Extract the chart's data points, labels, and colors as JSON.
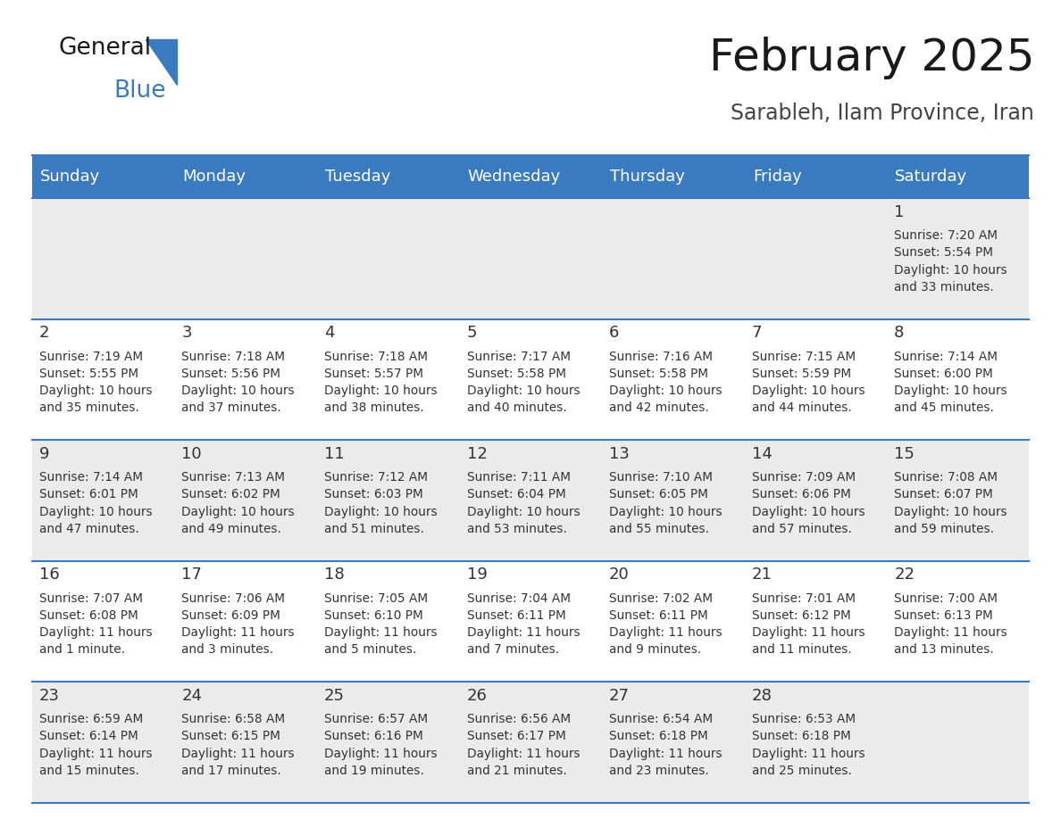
{
  "title": "February 2025",
  "subtitle": "Sarableh, Ilam Province, Iran",
  "header_bg": "#3a7abf",
  "header_text_color": "#ffffff",
  "row_bg_odd": "#ebebeb",
  "row_bg_even": "#ffffff",
  "border_color": "#3a7abf",
  "text_color": "#333333",
  "day_headers": [
    "Sunday",
    "Monday",
    "Tuesday",
    "Wednesday",
    "Thursday",
    "Friday",
    "Saturday"
  ],
  "days": [
    {
      "day": 1,
      "col": 6,
      "row": 0,
      "sunrise": "7:20 AM",
      "sunset": "5:54 PM",
      "daylight_h": "10 hours",
      "daylight_m": "33 minutes"
    },
    {
      "day": 2,
      "col": 0,
      "row": 1,
      "sunrise": "7:19 AM",
      "sunset": "5:55 PM",
      "daylight_h": "10 hours",
      "daylight_m": "35 minutes"
    },
    {
      "day": 3,
      "col": 1,
      "row": 1,
      "sunrise": "7:18 AM",
      "sunset": "5:56 PM",
      "daylight_h": "10 hours",
      "daylight_m": "37 minutes"
    },
    {
      "day": 4,
      "col": 2,
      "row": 1,
      "sunrise": "7:18 AM",
      "sunset": "5:57 PM",
      "daylight_h": "10 hours",
      "daylight_m": "38 minutes"
    },
    {
      "day": 5,
      "col": 3,
      "row": 1,
      "sunrise": "7:17 AM",
      "sunset": "5:58 PM",
      "daylight_h": "10 hours",
      "daylight_m": "40 minutes"
    },
    {
      "day": 6,
      "col": 4,
      "row": 1,
      "sunrise": "7:16 AM",
      "sunset": "5:58 PM",
      "daylight_h": "10 hours",
      "daylight_m": "42 minutes"
    },
    {
      "day": 7,
      "col": 5,
      "row": 1,
      "sunrise": "7:15 AM",
      "sunset": "5:59 PM",
      "daylight_h": "10 hours",
      "daylight_m": "44 minutes"
    },
    {
      "day": 8,
      "col": 6,
      "row": 1,
      "sunrise": "7:14 AM",
      "sunset": "6:00 PM",
      "daylight_h": "10 hours",
      "daylight_m": "45 minutes"
    },
    {
      "day": 9,
      "col": 0,
      "row": 2,
      "sunrise": "7:14 AM",
      "sunset": "6:01 PM",
      "daylight_h": "10 hours",
      "daylight_m": "47 minutes"
    },
    {
      "day": 10,
      "col": 1,
      "row": 2,
      "sunrise": "7:13 AM",
      "sunset": "6:02 PM",
      "daylight_h": "10 hours",
      "daylight_m": "49 minutes"
    },
    {
      "day": 11,
      "col": 2,
      "row": 2,
      "sunrise": "7:12 AM",
      "sunset": "6:03 PM",
      "daylight_h": "10 hours",
      "daylight_m": "51 minutes"
    },
    {
      "day": 12,
      "col": 3,
      "row": 2,
      "sunrise": "7:11 AM",
      "sunset": "6:04 PM",
      "daylight_h": "10 hours",
      "daylight_m": "53 minutes"
    },
    {
      "day": 13,
      "col": 4,
      "row": 2,
      "sunrise": "7:10 AM",
      "sunset": "6:05 PM",
      "daylight_h": "10 hours",
      "daylight_m": "55 minutes"
    },
    {
      "day": 14,
      "col": 5,
      "row": 2,
      "sunrise": "7:09 AM",
      "sunset": "6:06 PM",
      "daylight_h": "10 hours",
      "daylight_m": "57 minutes"
    },
    {
      "day": 15,
      "col": 6,
      "row": 2,
      "sunrise": "7:08 AM",
      "sunset": "6:07 PM",
      "daylight_h": "10 hours",
      "daylight_m": "59 minutes"
    },
    {
      "day": 16,
      "col": 0,
      "row": 3,
      "sunrise": "7:07 AM",
      "sunset": "6:08 PM",
      "daylight_h": "11 hours",
      "daylight_m": "1 minute"
    },
    {
      "day": 17,
      "col": 1,
      "row": 3,
      "sunrise": "7:06 AM",
      "sunset": "6:09 PM",
      "daylight_h": "11 hours",
      "daylight_m": "3 minutes"
    },
    {
      "day": 18,
      "col": 2,
      "row": 3,
      "sunrise": "7:05 AM",
      "sunset": "6:10 PM",
      "daylight_h": "11 hours",
      "daylight_m": "5 minutes"
    },
    {
      "day": 19,
      "col": 3,
      "row": 3,
      "sunrise": "7:04 AM",
      "sunset": "6:11 PM",
      "daylight_h": "11 hours",
      "daylight_m": "7 minutes"
    },
    {
      "day": 20,
      "col": 4,
      "row": 3,
      "sunrise": "7:02 AM",
      "sunset": "6:11 PM",
      "daylight_h": "11 hours",
      "daylight_m": "9 minutes"
    },
    {
      "day": 21,
      "col": 5,
      "row": 3,
      "sunrise": "7:01 AM",
      "sunset": "6:12 PM",
      "daylight_h": "11 hours",
      "daylight_m": "11 minutes"
    },
    {
      "day": 22,
      "col": 6,
      "row": 3,
      "sunrise": "7:00 AM",
      "sunset": "6:13 PM",
      "daylight_h": "11 hours",
      "daylight_m": "13 minutes"
    },
    {
      "day": 23,
      "col": 0,
      "row": 4,
      "sunrise": "6:59 AM",
      "sunset": "6:14 PM",
      "daylight_h": "11 hours",
      "daylight_m": "15 minutes"
    },
    {
      "day": 24,
      "col": 1,
      "row": 4,
      "sunrise": "6:58 AM",
      "sunset": "6:15 PM",
      "daylight_h": "11 hours",
      "daylight_m": "17 minutes"
    },
    {
      "day": 25,
      "col": 2,
      "row": 4,
      "sunrise": "6:57 AM",
      "sunset": "6:16 PM",
      "daylight_h": "11 hours",
      "daylight_m": "19 minutes"
    },
    {
      "day": 26,
      "col": 3,
      "row": 4,
      "sunrise": "6:56 AM",
      "sunset": "6:17 PM",
      "daylight_h": "11 hours",
      "daylight_m": "21 minutes"
    },
    {
      "day": 27,
      "col": 4,
      "row": 4,
      "sunrise": "6:54 AM",
      "sunset": "6:18 PM",
      "daylight_h": "11 hours",
      "daylight_m": "23 minutes"
    },
    {
      "day": 28,
      "col": 5,
      "row": 4,
      "sunrise": "6:53 AM",
      "sunset": "6:18 PM",
      "daylight_h": "11 hours",
      "daylight_m": "25 minutes"
    }
  ],
  "num_rows": 5,
  "num_cols": 7,
  "title_fontsize": 36,
  "subtitle_fontsize": 17,
  "header_fontsize": 13,
  "day_num_fontsize": 13,
  "info_fontsize": 9.8,
  "logo_general_fontsize": 19,
  "logo_blue_fontsize": 19
}
